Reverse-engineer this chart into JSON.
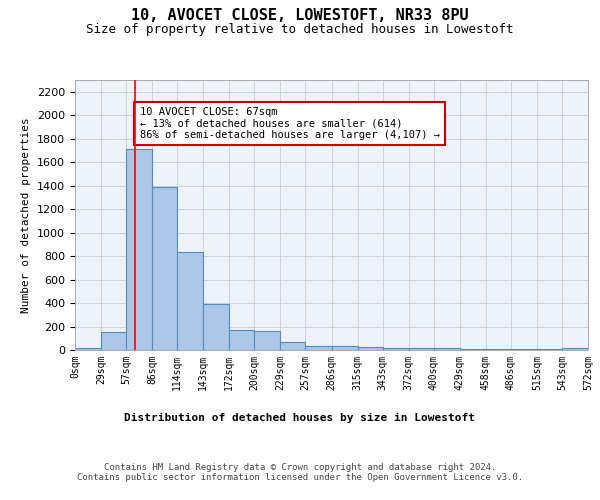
{
  "title": "10, AVOCET CLOSE, LOWESTOFT, NR33 8PU",
  "subtitle": "Size of property relative to detached houses in Lowestoft",
  "xlabel": "Distribution of detached houses by size in Lowestoft",
  "ylabel": "Number of detached properties",
  "bar_edges": [
    0,
    29,
    57,
    86,
    114,
    143,
    172,
    200,
    229,
    257,
    286,
    315,
    343,
    372,
    400,
    429,
    458,
    486,
    515,
    543,
    572
  ],
  "bar_heights": [
    20,
    155,
    1710,
    1390,
    835,
    390,
    170,
    165,
    70,
    30,
    30,
    25,
    20,
    15,
    15,
    10,
    10,
    5,
    5,
    15
  ],
  "bar_color": "#aec6e8",
  "bar_edge_color": "#4f8fbf",
  "red_line_x": 67,
  "annotation_text": "10 AVOCET CLOSE: 67sqm\n← 13% of detached houses are smaller (614)\n86% of semi-detached houses are larger (4,107) →",
  "annotation_box_color": "#ffffff",
  "annotation_box_edge": "#cc0000",
  "ylim": [
    0,
    2300
  ],
  "yticks": [
    0,
    200,
    400,
    600,
    800,
    1000,
    1200,
    1400,
    1600,
    1800,
    2000,
    2200
  ],
  "xtick_labels": [
    "0sqm",
    "29sqm",
    "57sqm",
    "86sqm",
    "114sqm",
    "143sqm",
    "172sqm",
    "200sqm",
    "229sqm",
    "257sqm",
    "286sqm",
    "315sqm",
    "343sqm",
    "372sqm",
    "400sqm",
    "429sqm",
    "458sqm",
    "486sqm",
    "515sqm",
    "543sqm",
    "572sqm"
  ],
  "footer_text": "Contains HM Land Registry data © Crown copyright and database right 2024.\nContains public sector information licensed under the Open Government Licence v3.0.",
  "background_color": "#eef2fb",
  "grid_color": "#cccccc",
  "title_fontsize": 11,
  "subtitle_fontsize": 9,
  "ylabel_fontsize": 8,
  "ytick_fontsize": 8,
  "xtick_fontsize": 7,
  "annotation_fontsize": 7.5,
  "xlabel_fontsize": 8,
  "footer_fontsize": 6.5
}
